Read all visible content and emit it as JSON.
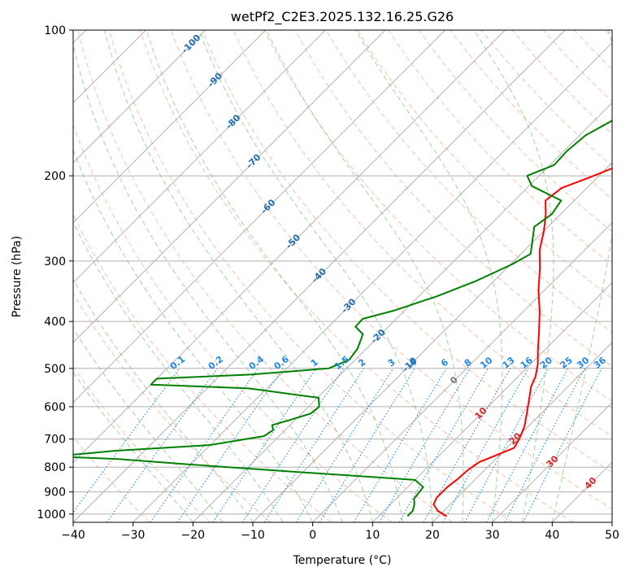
{
  "chart_data": {
    "type": "line",
    "subtype": "skew-t log-p",
    "title": "wetPf2_C2E3.2025.132.16.25.G26",
    "xlabel": "Temperature (°C)",
    "ylabel": "Pressure (hPa)",
    "xlim": [
      -40,
      50
    ],
    "ylim": [
      1040,
      100
    ],
    "y_scale": "log",
    "grid": true,
    "x_ticks": [
      -40,
      -30,
      -20,
      -10,
      0,
      10,
      20,
      30,
      40,
      50
    ],
    "y_ticks": [
      100,
      200,
      300,
      400,
      500,
      600,
      700,
      800,
      900,
      1000
    ],
    "series": [
      {
        "name": "",
        "color": "#ff0000",
        "role": "temperature",
        "points": [
          {
            "p": 1010,
            "t": 21.3
          },
          {
            "p": 985,
            "t": 19.0
          },
          {
            "p": 955,
            "t": 17.2
          },
          {
            "p": 925,
            "t": 16.6
          },
          {
            "p": 880,
            "t": 16.6
          },
          {
            "p": 845,
            "t": 17.0
          },
          {
            "p": 810,
            "t": 17.2
          },
          {
            "p": 780,
            "t": 17.8
          },
          {
            "p": 755,
            "t": 19.5
          },
          {
            "p": 730,
            "t": 21.2
          },
          {
            "p": 700,
            "t": 20.6
          },
          {
            "p": 660,
            "t": 19.4
          },
          {
            "p": 620,
            "t": 17.6
          },
          {
            "p": 575,
            "t": 15.4
          },
          {
            "p": 545,
            "t": 13.8
          },
          {
            "p": 520,
            "t": 12.9
          },
          {
            "p": 490,
            "t": 11.2
          },
          {
            "p": 460,
            "t": 9.0
          },
          {
            "p": 420,
            "t": 6.0
          },
          {
            "p": 380,
            "t": 2.6
          },
          {
            "p": 345,
            "t": -1.0
          },
          {
            "p": 310,
            "t": -4.5
          },
          {
            "p": 285,
            "t": -7.5
          },
          {
            "p": 260,
            "t": -10.0
          },
          {
            "p": 240,
            "t": -12.5
          },
          {
            "p": 225,
            "t": -14.8
          },
          {
            "p": 212,
            "t": -14.2
          },
          {
            "p": 202,
            "t": -11.4
          },
          {
            "p": 190,
            "t": -8.2
          },
          {
            "p": 175,
            "t": -6.9
          },
          {
            "p": 160,
            "t": -6.6
          },
          {
            "p": 145,
            "t": -6.7
          },
          {
            "p": 130,
            "t": -6.8
          },
          {
            "p": 120,
            "t": -6.8
          },
          {
            "p": 110,
            "t": -6.2
          },
          {
            "p": 100,
            "t": -6.3
          }
        ]
      },
      {
        "name": "",
        "color": "#008000",
        "role": "dewpoint",
        "points": [
          {
            "p": 1010,
            "t": 14.8
          },
          {
            "p": 985,
            "t": 14.8
          },
          {
            "p": 955,
            "t": 14.0
          },
          {
            "p": 930,
            "t": 13.0
          },
          {
            "p": 880,
            "t": 12.6
          },
          {
            "p": 850,
            "t": 10.0
          },
          {
            "p": 820,
            "t": -10.0
          },
          {
            "p": 790,
            "t": -30.0
          },
          {
            "p": 770,
            "t": -43.0
          },
          {
            "p": 760,
            "t": -54.0
          },
          {
            "p": 740,
            "t": -45.0
          },
          {
            "p": 720,
            "t": -30.0
          },
          {
            "p": 690,
            "t": -22.5
          },
          {
            "p": 670,
            "t": -22.0
          },
          {
            "p": 655,
            "t": -23.0
          },
          {
            "p": 640,
            "t": -21.0
          },
          {
            "p": 620,
            "t": -18.5
          },
          {
            "p": 600,
            "t": -18.2
          },
          {
            "p": 575,
            "t": -19.8
          },
          {
            "p": 550,
            "t": -33.0
          },
          {
            "p": 540,
            "t": -50.0
          },
          {
            "p": 525,
            "t": -50.0
          },
          {
            "p": 515,
            "t": -35.0
          },
          {
            "p": 500,
            "t": -23.0
          },
          {
            "p": 480,
            "t": -21.0
          },
          {
            "p": 455,
            "t": -21.5
          },
          {
            "p": 425,
            "t": -23.0
          },
          {
            "p": 410,
            "t": -25.5
          },
          {
            "p": 395,
            "t": -25.6
          },
          {
            "p": 380,
            "t": -21.8
          },
          {
            "p": 355,
            "t": -17.0
          },
          {
            "p": 330,
            "t": -13.0
          },
          {
            "p": 305,
            "t": -9.8
          },
          {
            "p": 290,
            "t": -8.4
          },
          {
            "p": 275,
            "t": -10.0
          },
          {
            "p": 255,
            "t": -12.3
          },
          {
            "p": 240,
            "t": -11.5
          },
          {
            "p": 225,
            "t": -12.2
          },
          {
            "p": 210,
            "t": -19.5
          },
          {
            "p": 200,
            "t": -22.0
          },
          {
            "p": 190,
            "t": -19.3
          },
          {
            "p": 178,
            "t": -19.5
          },
          {
            "p": 165,
            "t": -19.0
          },
          {
            "p": 150,
            "t": -16.3
          },
          {
            "p": 135,
            "t": -13.5
          },
          {
            "p": 120,
            "t": -11.5
          },
          {
            "p": 110,
            "t": -9.5
          },
          {
            "p": 100,
            "t": -8.6
          }
        ]
      }
    ],
    "annotations": {
      "mixing_ratio_labels": [
        "0.1",
        "0.2",
        "0.4",
        "0.6",
        "1",
        "1.5",
        "2",
        "3",
        "4",
        "6",
        "8",
        "10",
        "13",
        "16",
        "20",
        "25",
        "30",
        "36"
      ],
      "isotherm_labels_blue": [
        "-100",
        "-90",
        "-80",
        "-70",
        "-60",
        "-50",
        "-40",
        "-30",
        "-20",
        "-10"
      ],
      "isotherm_label_zero": "0",
      "isotherm_labels_red": [
        "10",
        "20",
        "30",
        "40"
      ]
    },
    "colors": {
      "temperature": "#ff0000",
      "dewpoint": "#008000",
      "mixing_ratio": "#1e88e5",
      "dry_adiabat": "#ff7f50",
      "moist_adiabat": "#2ca02c",
      "isotherm_label_cold": "#1f6fb2",
      "isotherm_label_warm": "#d62728"
    }
  }
}
